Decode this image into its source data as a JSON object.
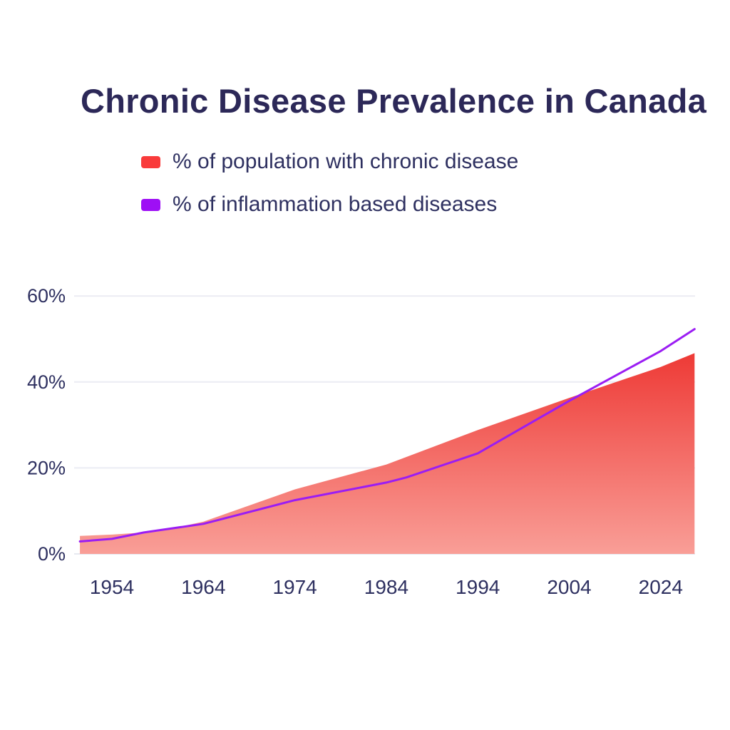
{
  "title": {
    "text": "Chronic Disease Prevalence in Canada",
    "color": "#2c2858"
  },
  "legend": {
    "items": [
      {
        "label": "% of population with chronic disease",
        "color": "#f93b3b"
      },
      {
        "label": "% of inflammation based diseases",
        "color": "#9e0ff5"
      }
    ]
  },
  "chart_data": {
    "type": "area",
    "title": "Chronic Disease Prevalence in Canada",
    "x_tick_labels": [
      "1954",
      "1964",
      "1974",
      "1984",
      "1994",
      "2004",
      "2024"
    ],
    "y_tick_labels": [
      "0%",
      "20%",
      "40%",
      "60%"
    ],
    "y_tick_values": [
      0,
      20,
      40,
      60
    ],
    "ylim": [
      0,
      63
    ],
    "grid": "horizontal",
    "legend_position": "top-left",
    "x_unit": "tick index (0 = 1954, 1 tick = 1 label step)",
    "series": [
      {
        "name": "% of population with chronic disease",
        "type": "area",
        "color": "#f93b3b",
        "fill_top": "#ee3a36",
        "fill_bottom": "#f99e97",
        "points": [
          {
            "x": -0.35,
            "y": 4.2
          },
          {
            "x": 0,
            "y": 4.5
          },
          {
            "x": 0.5,
            "y": 5.2
          },
          {
            "x": 1,
            "y": 7.5
          },
          {
            "x": 2,
            "y": 15.0
          },
          {
            "x": 3,
            "y": 20.8
          },
          {
            "x": 4,
            "y": 28.8
          },
          {
            "x": 5,
            "y": 36.3
          },
          {
            "x": 6,
            "y": 43.5
          },
          {
            "x": 6.37,
            "y": 46.7
          }
        ]
      },
      {
        "name": "% of inflammation based diseases",
        "type": "line",
        "color": "#9b1df3",
        "points": [
          {
            "x": -0.35,
            "y": 2.9
          },
          {
            "x": 0,
            "y": 3.5
          },
          {
            "x": 0.35,
            "y": 5.0
          },
          {
            "x": 1,
            "y": 7.0
          },
          {
            "x": 2,
            "y": 12.5
          },
          {
            "x": 3,
            "y": 16.6
          },
          {
            "x": 3.22,
            "y": 17.8
          },
          {
            "x": 4,
            "y": 23.4
          },
          {
            "x": 5,
            "y": 35.6
          },
          {
            "x": 6,
            "y": 47.2
          },
          {
            "x": 6.37,
            "y": 52.3
          }
        ]
      }
    ]
  },
  "colors": {
    "background": "#ffffff",
    "gridline": "#ebecf3",
    "baseline": "#e7e9f0",
    "axis_text": "#2e3060"
  }
}
